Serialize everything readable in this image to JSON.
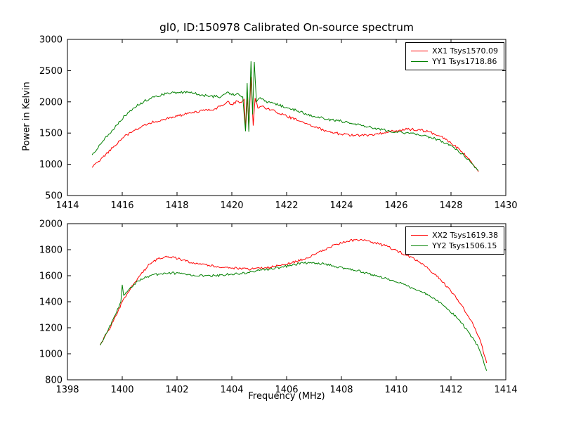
{
  "title": "gl0, ID:150978 Calibrated On-source spectrum",
  "colors": {
    "xx": "#ff0000",
    "yy": "#008000",
    "axes": "#000000",
    "background": "#ffffff"
  },
  "chart_data": [
    {
      "type": "line",
      "title": "gl0, ID:150978 Calibrated On-source spectrum",
      "xlabel": "",
      "ylabel": "Power in Kelvin",
      "xlim": [
        1414,
        1430
      ],
      "ylim": [
        500,
        3000
      ],
      "xticks": [
        1414,
        1416,
        1418,
        1420,
        1422,
        1424,
        1426,
        1428,
        1430
      ],
      "yticks": [
        500,
        1000,
        1500,
        2000,
        2500,
        3000
      ],
      "grid": false,
      "legend_position": "upper right",
      "legend": [
        "XX1 Tsys1570.09",
        "YY1 Tsys1718.86"
      ],
      "series": [
        {
          "name": "XX1 Tsys1570.09",
          "color": "#ff0000",
          "points": [
            [
              1414.9,
              950
            ],
            [
              1415.1,
              1030
            ],
            [
              1415.4,
              1160
            ],
            [
              1415.7,
              1290
            ],
            [
              1416.0,
              1420
            ],
            [
              1416.3,
              1510
            ],
            [
              1416.7,
              1600
            ],
            [
              1417.0,
              1660
            ],
            [
              1417.5,
              1720
            ],
            [
              1418.0,
              1770
            ],
            [
              1418.5,
              1820
            ],
            [
              1419.0,
              1860
            ],
            [
              1419.4,
              1890
            ],
            [
              1419.7,
              1950
            ],
            [
              1419.85,
              2010
            ],
            [
              1420.0,
              1960
            ],
            [
              1420.2,
              2010
            ],
            [
              1420.35,
              1990
            ],
            [
              1420.45,
              2040
            ],
            [
              1420.5,
              1560
            ],
            [
              1420.58,
              2080
            ],
            [
              1420.62,
              1560
            ],
            [
              1420.7,
              2400
            ],
            [
              1420.78,
              1620
            ],
            [
              1420.85,
              2060
            ],
            [
              1420.95,
              1900
            ],
            [
              1421.1,
              1930
            ],
            [
              1421.3,
              1890
            ],
            [
              1421.6,
              1840
            ],
            [
              1422.0,
              1770
            ],
            [
              1422.5,
              1690
            ],
            [
              1423.0,
              1600
            ],
            [
              1423.5,
              1530
            ],
            [
              1424.0,
              1480
            ],
            [
              1424.5,
              1460
            ],
            [
              1425.0,
              1470
            ],
            [
              1425.5,
              1500
            ],
            [
              1426.0,
              1540
            ],
            [
              1426.4,
              1560
            ],
            [
              1426.8,
              1555
            ],
            [
              1427.2,
              1520
            ],
            [
              1427.6,
              1450
            ],
            [
              1428.0,
              1340
            ],
            [
              1428.4,
              1200
            ],
            [
              1428.7,
              1060
            ],
            [
              1429.0,
              880
            ]
          ]
        },
        {
          "name": "YY1 Tsys1718.86",
          "color": "#008000",
          "points": [
            [
              1414.9,
              1150
            ],
            [
              1415.2,
              1320
            ],
            [
              1415.5,
              1480
            ],
            [
              1415.8,
              1630
            ],
            [
              1416.1,
              1780
            ],
            [
              1416.4,
              1900
            ],
            [
              1416.8,
              2010
            ],
            [
              1417.2,
              2090
            ],
            [
              1417.6,
              2130
            ],
            [
              1418.0,
              2150
            ],
            [
              1418.4,
              2150
            ],
            [
              1418.8,
              2120
            ],
            [
              1419.2,
              2090
            ],
            [
              1419.6,
              2080
            ],
            [
              1419.85,
              2160
            ],
            [
              1420.0,
              2110
            ],
            [
              1420.2,
              2140
            ],
            [
              1420.4,
              2080
            ],
            [
              1420.5,
              1530
            ],
            [
              1420.56,
              2300
            ],
            [
              1420.62,
              1520
            ],
            [
              1420.7,
              2650
            ],
            [
              1420.76,
              1800
            ],
            [
              1420.82,
              2640
            ],
            [
              1420.9,
              2000
            ],
            [
              1421.0,
              2060
            ],
            [
              1421.2,
              2010
            ],
            [
              1421.5,
              1980
            ],
            [
              1422.0,
              1910
            ],
            [
              1422.5,
              1840
            ],
            [
              1423.0,
              1770
            ],
            [
              1423.5,
              1720
            ],
            [
              1424.0,
              1690
            ],
            [
              1424.5,
              1650
            ],
            [
              1425.0,
              1600
            ],
            [
              1425.5,
              1555
            ],
            [
              1426.0,
              1520
            ],
            [
              1426.5,
              1495
            ],
            [
              1427.0,
              1460
            ],
            [
              1427.5,
              1400
            ],
            [
              1428.0,
              1300
            ],
            [
              1428.4,
              1170
            ],
            [
              1428.7,
              1040
            ],
            [
              1429.0,
              900
            ]
          ]
        }
      ]
    },
    {
      "type": "line",
      "title": "",
      "xlabel": "Frequency (MHz)",
      "ylabel": "",
      "xlim": [
        1398,
        1414
      ],
      "ylim": [
        800,
        2000
      ],
      "xticks": [
        1398,
        1400,
        1402,
        1404,
        1406,
        1408,
        1410,
        1412,
        1414
      ],
      "yticks": [
        800,
        1000,
        1200,
        1400,
        1600,
        1800,
        2000
      ],
      "grid": false,
      "legend_position": "upper right",
      "legend": [
        "XX2 Tsys1619.38",
        "YY2 Tsys1506.15"
      ],
      "series": [
        {
          "name": "XX2 Tsys1619.38",
          "color": "#ff0000",
          "points": [
            [
              1399.2,
              1070
            ],
            [
              1399.5,
              1180
            ],
            [
              1399.8,
              1300
            ],
            [
              1400.0,
              1400
            ],
            [
              1400.3,
              1500
            ],
            [
              1400.6,
              1590
            ],
            [
              1401.0,
              1690
            ],
            [
              1401.3,
              1730
            ],
            [
              1401.6,
              1750
            ],
            [
              1401.9,
              1740
            ],
            [
              1402.2,
              1720
            ],
            [
              1402.6,
              1700
            ],
            [
              1403.0,
              1690
            ],
            [
              1403.4,
              1670
            ],
            [
              1403.8,
              1665
            ],
            [
              1404.2,
              1655
            ],
            [
              1404.6,
              1650
            ],
            [
              1405.0,
              1660
            ],
            [
              1405.4,
              1665
            ],
            [
              1405.8,
              1680
            ],
            [
              1406.2,
              1700
            ],
            [
              1406.6,
              1725
            ],
            [
              1407.0,
              1760
            ],
            [
              1407.4,
              1800
            ],
            [
              1407.8,
              1840
            ],
            [
              1408.2,
              1865
            ],
            [
              1408.5,
              1875
            ],
            [
              1408.8,
              1870
            ],
            [
              1409.2,
              1855
            ],
            [
              1409.6,
              1830
            ],
            [
              1410.0,
              1795
            ],
            [
              1410.4,
              1755
            ],
            [
              1410.8,
              1710
            ],
            [
              1411.2,
              1650
            ],
            [
              1411.6,
              1575
            ],
            [
              1412.0,
              1480
            ],
            [
              1412.4,
              1370
            ],
            [
              1412.8,
              1230
            ],
            [
              1413.1,
              1080
            ],
            [
              1413.3,
              930
            ]
          ]
        },
        {
          "name": "YY2 Tsys1506.15",
          "color": "#008000",
          "points": [
            [
              1399.2,
              1065
            ],
            [
              1399.5,
              1190
            ],
            [
              1399.75,
              1300
            ],
            [
              1399.95,
              1400
            ],
            [
              1400.0,
              1530
            ],
            [
              1400.05,
              1450
            ],
            [
              1400.3,
              1510
            ],
            [
              1400.6,
              1560
            ],
            [
              1401.0,
              1600
            ],
            [
              1401.4,
              1615
            ],
            [
              1401.8,
              1620
            ],
            [
              1402.2,
              1615
            ],
            [
              1402.6,
              1605
            ],
            [
              1403.0,
              1600
            ],
            [
              1403.4,
              1600
            ],
            [
              1403.8,
              1608
            ],
            [
              1404.2,
              1615
            ],
            [
              1404.6,
              1625
            ],
            [
              1405.0,
              1640
            ],
            [
              1405.4,
              1652
            ],
            [
              1405.8,
              1665
            ],
            [
              1406.2,
              1680
            ],
            [
              1406.6,
              1698
            ],
            [
              1407.0,
              1700
            ],
            [
              1407.4,
              1690
            ],
            [
              1407.8,
              1670
            ],
            [
              1408.2,
              1655
            ],
            [
              1408.6,
              1640
            ],
            [
              1409.0,
              1615
            ],
            [
              1409.4,
              1590
            ],
            [
              1409.8,
              1565
            ],
            [
              1410.2,
              1540
            ],
            [
              1410.6,
              1505
            ],
            [
              1411.0,
              1470
            ],
            [
              1411.4,
              1425
            ],
            [
              1411.8,
              1360
            ],
            [
              1412.2,
              1280
            ],
            [
              1412.6,
              1180
            ],
            [
              1413.0,
              1050
            ],
            [
              1413.3,
              870
            ]
          ]
        }
      ]
    }
  ]
}
